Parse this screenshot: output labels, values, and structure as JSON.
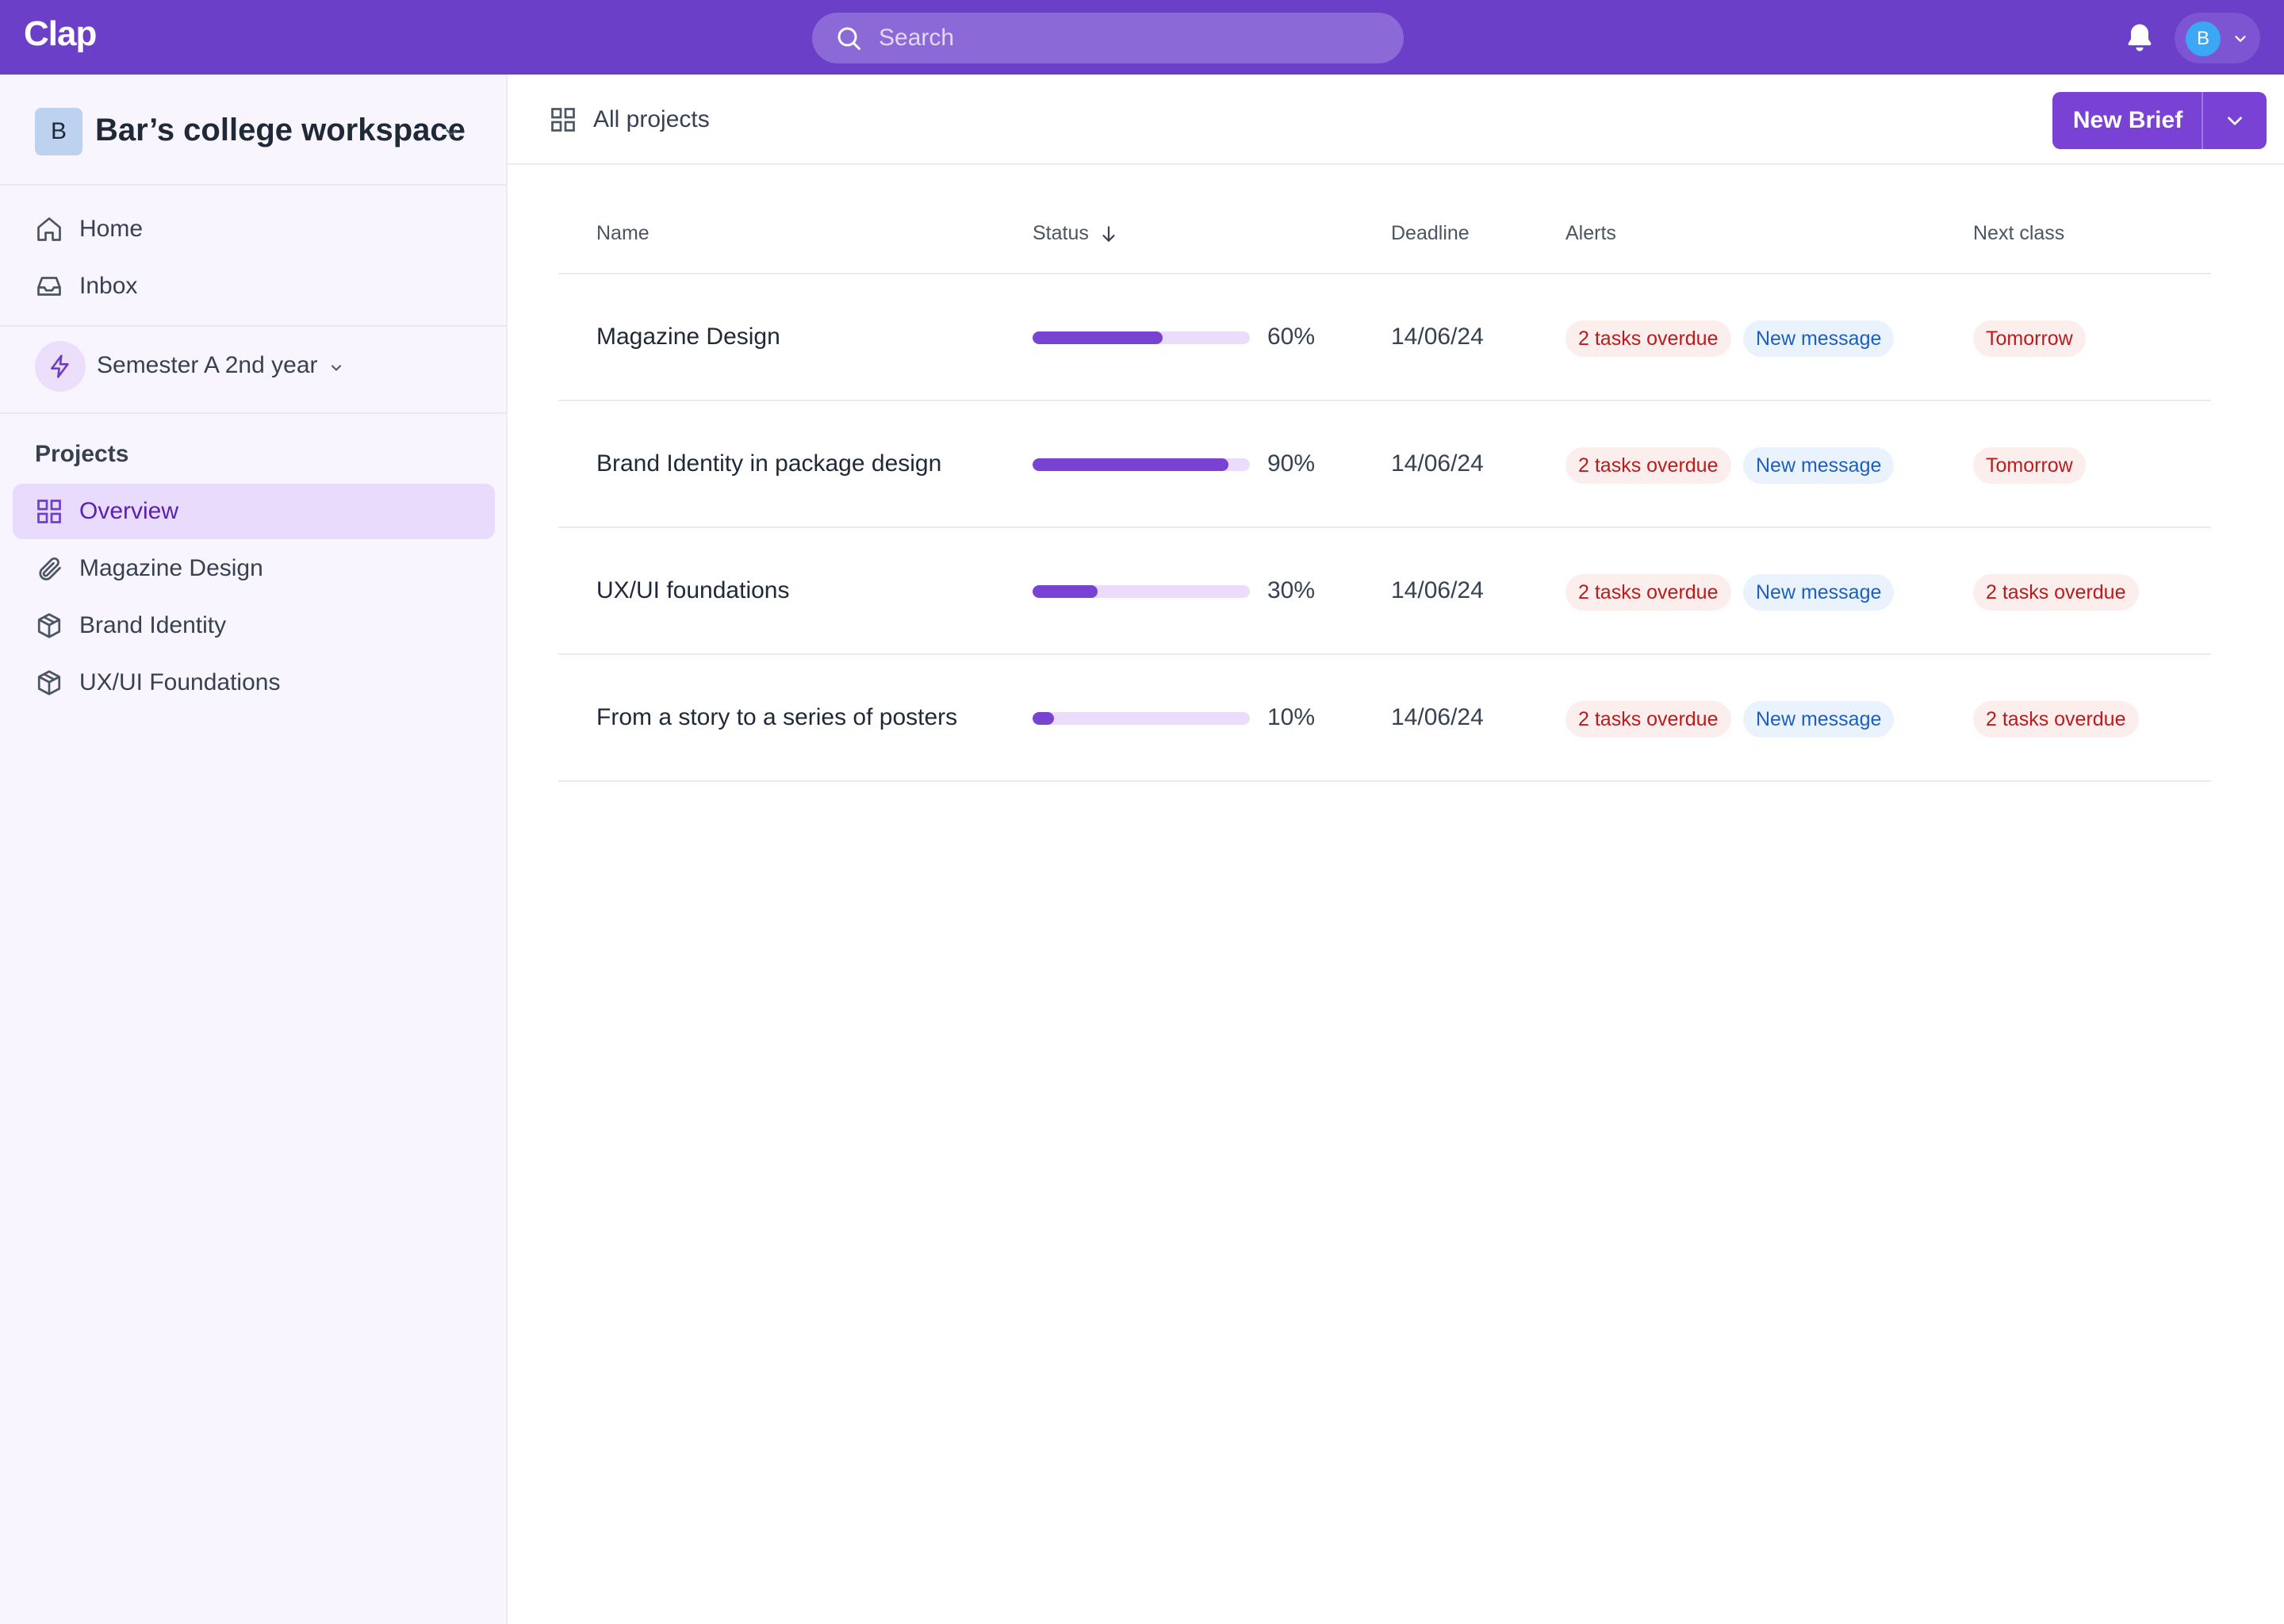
{
  "app": {
    "logo": "Clap"
  },
  "search": {
    "placeholder": "Search"
  },
  "user": {
    "initial": "B"
  },
  "workspace": {
    "initial": "B",
    "name": "Bar’s college workspace"
  },
  "nav": {
    "home": "Home",
    "inbox": "Inbox"
  },
  "semester": {
    "label": "Semester A 2nd year"
  },
  "projects": {
    "title": "Projects",
    "items": [
      {
        "label": "Overview",
        "icon": "grid-icon",
        "active": true
      },
      {
        "label": "Magazine Design",
        "icon": "paperclip-icon",
        "active": false
      },
      {
        "label": "Brand Identity",
        "icon": "box-icon",
        "active": false
      },
      {
        "label": "UX/UI Foundations",
        "icon": "box-icon",
        "active": false
      }
    ]
  },
  "main": {
    "title": "All projects",
    "new_brief_label": "New Brief"
  },
  "table": {
    "columns": {
      "name": "Name",
      "status": "Status",
      "deadline": "Deadline",
      "alerts": "Alerts",
      "next_class": "Next class"
    },
    "rows": [
      {
        "name": "Magazine Design",
        "progress": 0.6,
        "progress_label": "60%",
        "deadline": "14/06/24",
        "alert_overdue": "2 tasks overdue",
        "alert_message": "New message",
        "next_class": "Tomorrow"
      },
      {
        "name": "Brand Identity in package design",
        "progress": 0.9,
        "progress_label": "90%",
        "deadline": "14/06/24",
        "alert_overdue": "2 tasks overdue",
        "alert_message": "New message",
        "next_class": "Tomorrow"
      },
      {
        "name": "UX/UI foundations",
        "progress": 0.3,
        "progress_label": "30%",
        "deadline": "14/06/24",
        "alert_overdue": "2 tasks overdue",
        "alert_message": "New message",
        "next_class": "2 tasks overdue"
      },
      {
        "name": "From a story to a series of posters",
        "progress": 0.1,
        "progress_label": "10%",
        "deadline": "14/06/24",
        "alert_overdue": "2 tasks overdue",
        "alert_message": "New message",
        "next_class": "2 tasks overdue"
      }
    ]
  },
  "colors": {
    "brand": "#6b3fc7",
    "accent": "#7843d3",
    "progress_track": "#ebdcfb",
    "alert_red": "#b91c1c",
    "alert_blue": "#1d5fbf"
  }
}
